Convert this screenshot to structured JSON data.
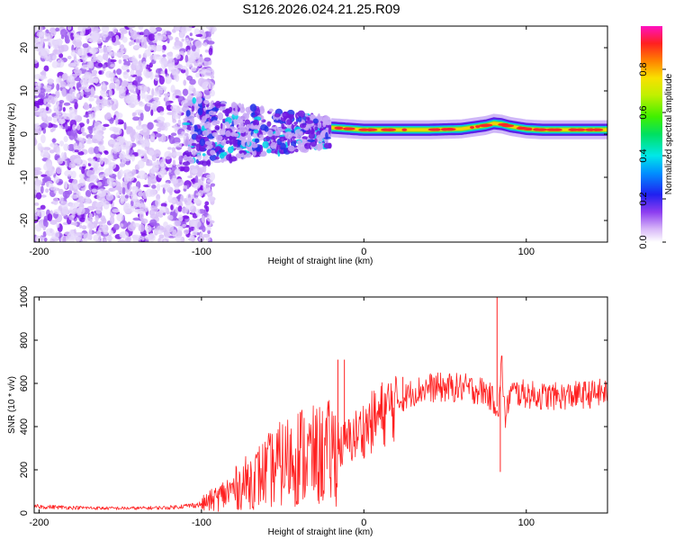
{
  "title": "S126.2026.024.21.25.R09",
  "chart_data": [
    {
      "type": "heatmap",
      "xlabel": "Height of straight line (km)",
      "ylabel": "Frequency (Hz)",
      "xlim": [
        -203,
        150
      ],
      "ylim": [
        -25,
        25
      ],
      "x_ticks": [
        -200,
        -100,
        0,
        100
      ],
      "x_tick_labels": [
        "-200",
        "-100",
        "0",
        "100"
      ],
      "y_ticks": [
        -20,
        -10,
        0,
        10,
        20
      ],
      "y_tick_labels": [
        "-20",
        "-10",
        "0",
        "10",
        "20"
      ],
      "colorbar": {
        "label": "Normalized spectral amplitude",
        "range": [
          0.0,
          1.0
        ],
        "ticks": [
          0.0,
          0.2,
          0.4,
          0.6,
          0.8
        ],
        "tick_labels": [
          "0.0",
          "0.2",
          "0.4",
          "0.6",
          "0.8"
        ]
      },
      "regions": [
        {
          "x_range": [
            -203,
            -93
          ],
          "freq_range": [
            -25,
            25
          ],
          "amplitude": 0.15,
          "description": "scattered noise"
        },
        {
          "x_range": [
            -110,
            -20
          ],
          "freq_range": [
            -10,
            7
          ],
          "amplitude": 0.3,
          "description": "transition band"
        },
        {
          "x_range": [
            -20,
            150
          ],
          "freq_range": [
            -1,
            3
          ],
          "amplitude": 0.9,
          "description": "carrier line"
        }
      ],
      "carrier_line": {
        "x": [
          -20,
          0,
          20,
          40,
          60,
          75,
          80,
          85,
          90,
          100,
          110,
          130,
          150
        ],
        "freq": [
          1.5,
          1.0,
          1.0,
          1.0,
          1.2,
          2.0,
          2.5,
          2.3,
          1.8,
          1.2,
          1.0,
          1.0,
          1.0
        ]
      }
    },
    {
      "type": "line",
      "xlabel": "Height of straight line (km)",
      "ylabel": "SNR (10 * v/v)",
      "xlim": [
        -203,
        150
      ],
      "ylim": [
        0,
        1000
      ],
      "x_ticks": [
        -200,
        -100,
        0,
        100
      ],
      "x_tick_labels": [
        "-200",
        "-100",
        "0",
        "100"
      ],
      "y_ticks": [
        0,
        200,
        400,
        600,
        800,
        1000
      ],
      "y_tick_labels": [
        "0",
        "200",
        "400",
        "600",
        "800",
        "1000"
      ],
      "color": "#ff2020",
      "series": [
        {
          "name": "SNR",
          "x": [
            -203,
            -180,
            -160,
            -140,
            -120,
            -100,
            -90,
            -80,
            -70,
            -60,
            -50,
            -40,
            -30,
            -20,
            -15,
            -10,
            0,
            10,
            20,
            30,
            40,
            50,
            60,
            70,
            75,
            80,
            83,
            85,
            87,
            90,
            100,
            110,
            120,
            130,
            140,
            150
          ],
          "y": [
            30,
            25,
            22,
            22,
            25,
            40,
            70,
            110,
            150,
            190,
            230,
            270,
            260,
            280,
            300,
            330,
            390,
            450,
            510,
            560,
            580,
            580,
            580,
            570,
            560,
            520,
            480,
            700,
            420,
            560,
            550,
            540,
            540,
            545,
            550,
            560
          ]
        }
      ],
      "spikes": [
        {
          "x": -16,
          "y": 710
        },
        {
          "x": -12,
          "y": 710
        },
        {
          "x": 24,
          "y": 630
        },
        {
          "x": 82,
          "y": 1000
        },
        {
          "x": 84,
          "y": 190
        }
      ]
    }
  ]
}
